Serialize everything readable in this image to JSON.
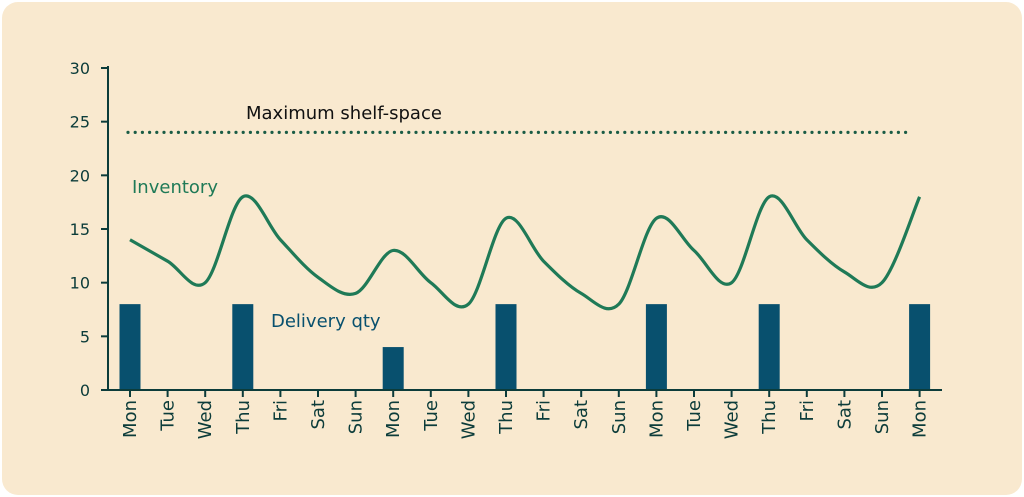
{
  "chart_data": {
    "type": "bar+line",
    "categories": [
      "Mon",
      "Tue",
      "Wed",
      "Thu",
      "Fri",
      "Sat",
      "Sun",
      "Mon",
      "Tue",
      "Wed",
      "Thu",
      "Fri",
      "Sat",
      "Sun",
      "Mon",
      "Tue",
      "Wed",
      "Thu",
      "Fri",
      "Sat",
      "Sun",
      "Mon"
    ],
    "ylim": [
      0,
      30
    ],
    "yticks": [
      "0",
      "5",
      "10",
      "15",
      "20",
      "25",
      "30"
    ],
    "series": [
      {
        "name": "Inventory",
        "type": "line",
        "color": "#1f7a57",
        "values": [
          14,
          12,
          10,
          18,
          14,
          10.5,
          9,
          13,
          10,
          8,
          16,
          12,
          9,
          8,
          16,
          13,
          10,
          18,
          14,
          11,
          10,
          18
        ]
      },
      {
        "name": "Delivery qty",
        "type": "bar",
        "color": "#08506e",
        "values": [
          8,
          0,
          0,
          8,
          0,
          0,
          0,
          4,
          0,
          0,
          8,
          0,
          0,
          0,
          8,
          0,
          0,
          8,
          0,
          0,
          0,
          8
        ]
      }
    ],
    "threshold": {
      "label": "Maximum shelf-space",
      "value": 24,
      "color": "#1a5c45",
      "style": "dotted"
    },
    "annotations": {
      "inventory_label": "Inventory",
      "delivery_label": "Delivery qty",
      "threshold_label": "Maximum shelf-space"
    },
    "grid": false,
    "legend": "none"
  },
  "colors": {
    "background": "#f9e9cf",
    "axis": "#0c3c3a",
    "inventory": "#1f7a57",
    "delivery": "#08506e",
    "threshold": "#1a5c45"
  }
}
